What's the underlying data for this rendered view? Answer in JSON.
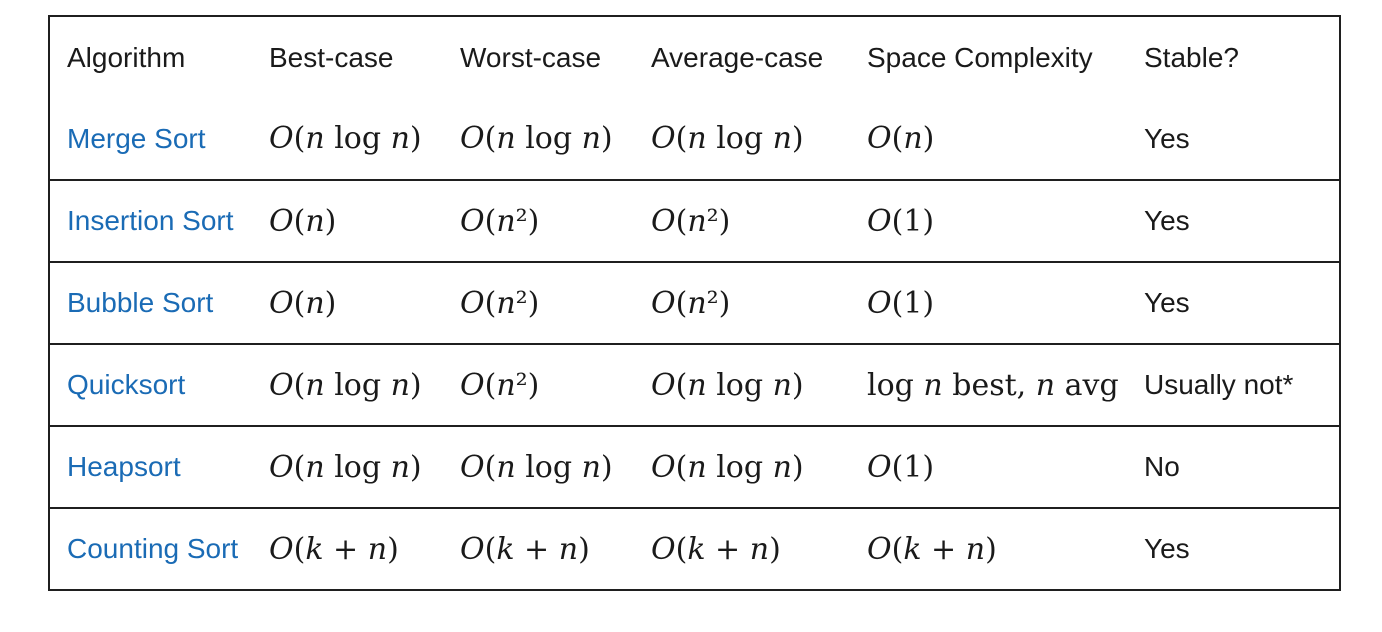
{
  "table": {
    "headers": [
      "Algorithm",
      "Best-case",
      "Worst-case",
      "Average-case",
      "Space Complexity",
      "Stable?"
    ],
    "rows": [
      {
        "algorithm": "Merge Sort",
        "best": "O(n log n)",
        "worst": "O(n log n)",
        "average": "O(n log n)",
        "space": "O(n)",
        "stable": "Yes"
      },
      {
        "algorithm": "Insertion Sort",
        "best": "O(n)",
        "worst": "O(n²)",
        "average": "O(n²)",
        "space": "O(1)",
        "stable": "Yes"
      },
      {
        "algorithm": "Bubble Sort",
        "best": "O(n)",
        "worst": "O(n²)",
        "average": "O(n²)",
        "space": "O(1)",
        "stable": "Yes"
      },
      {
        "algorithm": "Quicksort",
        "best": "O(n log n)",
        "worst": "O(n²)",
        "average": "O(n log n)",
        "space": "log n best, n avg",
        "stable": "Usually not*"
      },
      {
        "algorithm": "Heapsort",
        "best": "O(n log n)",
        "worst": "O(n log n)",
        "average": "O(n log n)",
        "space": "O(1)",
        "stable": "No"
      },
      {
        "algorithm": "Counting Sort",
        "best": "O(k + n)",
        "worst": "O(k + n)",
        "average": "O(k + n)",
        "space": "O(k + n)",
        "stable": "Yes"
      }
    ]
  },
  "colors": {
    "link": "#1a6bb5",
    "text": "#1a1a1a",
    "border": "#1f1f1f"
  }
}
